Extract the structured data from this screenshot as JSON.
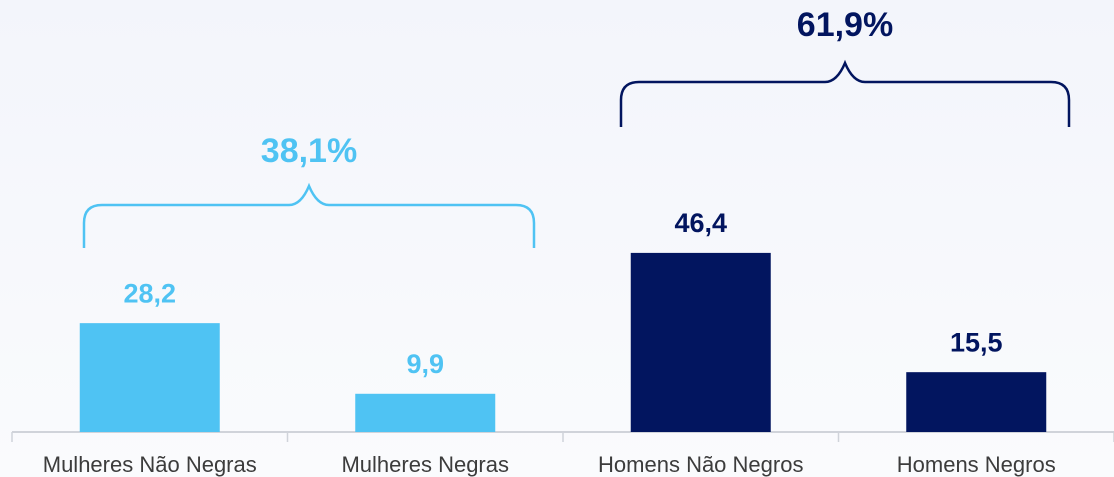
{
  "chart_data": {
    "type": "bar",
    "categories": [
      "Mulheres Não Negras",
      "Mulheres Negras",
      "Homens Não Negros",
      "Homens Negros"
    ],
    "values": [
      28.2,
      9.9,
      46.4,
      15.5
    ],
    "value_labels": [
      "28,2",
      "9,9",
      "46,4",
      "15,5"
    ],
    "colors": [
      "#4fc3f3",
      "#4fc3f3",
      "#02155f",
      "#02155f"
    ],
    "annotations": [
      "38,1%",
      "61,9%"
    ]
  }
}
